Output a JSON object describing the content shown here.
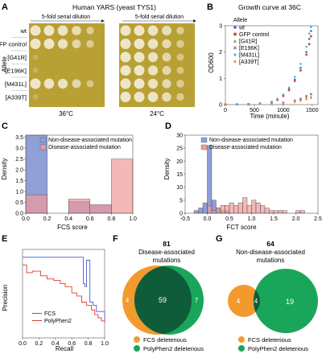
{
  "panels": {
    "A": {
      "letter": "A",
      "title": "Human YARS (yeast TYS1)",
      "dilution_left": "5-fold serial dilution",
      "dilution_right": "5-fold serial dilution",
      "ylabel": "Allele",
      "rows": [
        "wt",
        "GFP control",
        "[G41R]",
        "[E196K]",
        "[M431L]",
        "[A339T]"
      ],
      "temp_left": "36°C",
      "temp_right": "24°C",
      "plate_color": "#b8a034",
      "spot_growth_left": [
        [
          1,
          1,
          0.95,
          0.8,
          0.5
        ],
        [
          1,
          1,
          0.9,
          0.7,
          0.5
        ],
        [
          0.05,
          0,
          0,
          0,
          0
        ],
        [
          0.05,
          0,
          0,
          0,
          0
        ],
        [
          1,
          0.95,
          0.9,
          0.7,
          0.4
        ],
        [
          0.05,
          0,
          0,
          0,
          0
        ]
      ],
      "spot_growth_right": [
        [
          1,
          1,
          0.95,
          0.85,
          0.5
        ],
        [
          1,
          1,
          0.95,
          0.75,
          0.5
        ],
        [
          1,
          1,
          0.9,
          0.7,
          0.4
        ],
        [
          1,
          1,
          0.9,
          0.7,
          0.4
        ],
        [
          1,
          1,
          0.9,
          0.75,
          0.5
        ],
        [
          1,
          1,
          0.95,
          0.8,
          0.5
        ]
      ]
    },
    "B": {
      "letter": "B",
      "chart_data": {
        "type": "scatter",
        "title": "Growth curve at 36C",
        "xlabel": "Time (minute)",
        "ylabel": "OD600",
        "xlim": [
          0,
          1600
        ],
        "ylim": [
          0,
          3
        ],
        "xticks": [
          "0",
          "500",
          "1000",
          "1500"
        ],
        "yticks": [
          "0",
          "1",
          "2",
          "3"
        ],
        "legend_title": "Allele",
        "series": [
          {
            "name": "wt",
            "color": "#3a6fc4",
            "marker": "dot",
            "points": [
              [
                0,
                0
              ],
              [
                200,
                0.01
              ],
              [
                400,
                0.02
              ],
              [
                600,
                0.04
              ],
              [
                800,
                0.1
              ],
              [
                900,
                0.2
              ],
              [
                1000,
                0.35
              ],
              [
                1100,
                0.6
              ],
              [
                1200,
                0.95
              ],
              [
                1300,
                1.4
              ],
              [
                1400,
                2.0
              ],
              [
                1450,
                2.5
              ],
              [
                1480,
                2.8
              ]
            ]
          },
          {
            "name": "GFP control",
            "color": "#d6443a",
            "marker": "square",
            "points": [
              [
                0,
                0
              ],
              [
                200,
                0.01
              ],
              [
                400,
                0.02
              ],
              [
                600,
                0.04
              ],
              [
                800,
                0.09
              ],
              [
                900,
                0.18
              ],
              [
                1000,
                0.33
              ],
              [
                1100,
                0.55
              ],
              [
                1200,
                0.9
              ],
              [
                1300,
                1.3
              ],
              [
                1400,
                1.9
              ],
              [
                1450,
                2.3
              ],
              [
                1480,
                2.6
              ]
            ]
          },
          {
            "name": "[G41R]",
            "color": "#5aab3f",
            "marker": "triangle",
            "points": [
              [
                0,
                0
              ],
              [
                400,
                0.01
              ],
              [
                800,
                0.03
              ],
              [
                1000,
                0.06
              ],
              [
                1200,
                0.12
              ],
              [
                1300,
                0.17
              ],
              [
                1400,
                0.25
              ],
              [
                1480,
                0.3
              ]
            ]
          },
          {
            "name": "[E196K]",
            "color": "#7a4fa8",
            "marker": "x",
            "points": [
              [
                0,
                0
              ],
              [
                400,
                0.01
              ],
              [
                800,
                0.03
              ],
              [
                1000,
                0.07
              ],
              [
                1200,
                0.15
              ],
              [
                1300,
                0.22
              ],
              [
                1400,
                0.32
              ],
              [
                1480,
                0.4
              ]
            ]
          },
          {
            "name": "[M431L]",
            "color": "#3fb6cf",
            "marker": "star",
            "points": [
              [
                0,
                0
              ],
              [
                200,
                0.01
              ],
              [
                400,
                0.02
              ],
              [
                600,
                0.04
              ],
              [
                800,
                0.1
              ],
              [
                900,
                0.22
              ],
              [
                1000,
                0.38
              ],
              [
                1100,
                0.65
              ],
              [
                1200,
                1.05
              ],
              [
                1300,
                1.55
              ],
              [
                1400,
                2.2
              ],
              [
                1450,
                2.7
              ],
              [
                1480,
                2.95
              ]
            ]
          },
          {
            "name": "[A339T]",
            "color": "#f08a24",
            "marker": "diamond",
            "points": [
              [
                0,
                0
              ],
              [
                400,
                0.01
              ],
              [
                800,
                0.03
              ],
              [
                1000,
                0.05
              ],
              [
                1200,
                0.1
              ],
              [
                1300,
                0.14
              ],
              [
                1400,
                0.2
              ],
              [
                1480,
                0.25
              ]
            ]
          }
        ]
      }
    },
    "C": {
      "letter": "C",
      "chart_data": {
        "type": "bar",
        "xlabel": "FCS score",
        "ylabel": "Density",
        "xlim": [
          0,
          1
        ],
        "ylim": [
          0,
          3.6
        ],
        "xticks": [
          "0.0",
          "0.2",
          "0.4",
          "0.6",
          "0.8",
          "1.0"
        ],
        "yticks": [
          "0.0",
          "0.5",
          "1.0",
          "1.5",
          "2.0",
          "2.5",
          "3.0",
          "3.5"
        ],
        "bin_edges": [
          0,
          0.2,
          0.4,
          0.6,
          0.8,
          1.0
        ],
        "series": [
          {
            "name": "Non-disease-associated mutation",
            "color": "#8f9fd8",
            "values": [
              3.6,
              0,
              0.55,
              0.35,
              0
            ]
          },
          {
            "name": "Disease-associated mutation",
            "color": "#f09a9a",
            "values": [
              0.85,
              0,
              0.65,
              0.4,
              2.5
            ]
          }
        ]
      }
    },
    "D": {
      "letter": "D",
      "chart_data": {
        "type": "bar",
        "xlabel": "FCT score",
        "ylabel": "Density",
        "xlim": [
          -0.5,
          2.5
        ],
        "ylim": [
          0,
          30
        ],
        "xticks": [
          "-0.5",
          "0.0",
          "0.5",
          "1.0",
          "1.5",
          "2.0",
          "2.5"
        ],
        "yticks": [
          "0",
          "5",
          "10",
          "15",
          "20",
          "25",
          "30"
        ],
        "bin_edges": [
          -0.3,
          -0.2,
          -0.1,
          0,
          0.1,
          0.2,
          0.3,
          0.4,
          0.5,
          0.6,
          0.7,
          0.8,
          0.9,
          1.0,
          1.1,
          1.2,
          1.3,
          1.4,
          1.5,
          1.6,
          1.7,
          1.8,
          1.9,
          2.0,
          2.1,
          2.2
        ],
        "series": [
          {
            "name": "Non-disease-associated mutation",
            "color": "#8f9fd8",
            "values": [
              1,
              2,
              4,
              26,
              5,
              2,
              1,
              1,
              0,
              0,
              0,
              0,
              0,
              0,
              0,
              0,
              0,
              0,
              0,
              0,
              0,
              0,
              0,
              0,
              0
            ]
          },
          {
            "name": "Disease-associated mutation",
            "color": "#f09a9a",
            "values": [
              0,
              0,
              0,
              3,
              1,
              2,
              3,
              3,
              4,
              3,
              4,
              6,
              3,
              5,
              4,
              3,
              2,
              1,
              1,
              1,
              1,
              0,
              0,
              1,
              1
            ]
          }
        ]
      }
    },
    "E": {
      "letter": "E",
      "chart_data": {
        "type": "line",
        "xlabel": "Recall",
        "ylabel": "Precision",
        "xlim": [
          0,
          1
        ],
        "ylim": [
          0.45,
          1.02
        ],
        "xticks": [
          "0.0",
          "0.2",
          "0.4",
          "0.6",
          "0.8",
          "1.0"
        ],
        "series": [
          {
            "name": "FCS",
            "color": "#4a5fd0",
            "points": [
              [
                0,
                0.97
              ],
              [
                0.7,
                0.97
              ],
              [
                0.72,
                0.97
              ],
              [
                0.74,
                0.8
              ],
              [
                0.76,
                0.78
              ],
              [
                0.78,
                0.95
              ],
              [
                0.8,
                0.95
              ],
              [
                0.82,
                0.68
              ],
              [
                0.86,
                0.66
              ],
              [
                0.9,
                0.62
              ],
              [
                1.0,
                0.55
              ]
            ]
          },
          {
            "name": "PolyPhen2",
            "color": "#e03c2a",
            "points": [
              [
                0,
                0.92
              ],
              [
                0.05,
                0.87
              ],
              [
                0.12,
                0.88
              ],
              [
                0.22,
                0.85
              ],
              [
                0.3,
                0.83
              ],
              [
                0.38,
                0.82
              ],
              [
                0.46,
                0.8
              ],
              [
                0.52,
                0.78
              ],
              [
                0.6,
                0.74
              ],
              [
                0.66,
                0.72
              ],
              [
                0.72,
                0.68
              ],
              [
                0.78,
                0.66
              ],
              [
                0.84,
                0.63
              ],
              [
                0.88,
                0.6
              ],
              [
                0.92,
                0.58
              ],
              [
                0.96,
                0.56
              ],
              [
                1.0,
                0.55
              ]
            ]
          }
        ]
      }
    },
    "F": {
      "letter": "F",
      "count": "81",
      "title_line1": "Disease-associated",
      "title_line2": "mutations",
      "only_a": "4",
      "both": "59",
      "only_b": "7",
      "legend_a": "FCS deleterious",
      "legend_b": "PolyPhen2 deleterious",
      "color_a": "#f29a2e",
      "color_b": "#1aa65a",
      "color_both": "#0f5c3a"
    },
    "G": {
      "letter": "G",
      "count": "64",
      "title_line1": "Non-disease-associated",
      "title_line2": "mutations",
      "only_a": "4",
      "both": "4",
      "only_b": "19",
      "legend_a": "FCS deleterious",
      "legend_b": "PolyPhen2 deleterious",
      "color_a": "#f29a2e",
      "color_b": "#1aa65a",
      "color_both": "#0f5c3a"
    }
  }
}
